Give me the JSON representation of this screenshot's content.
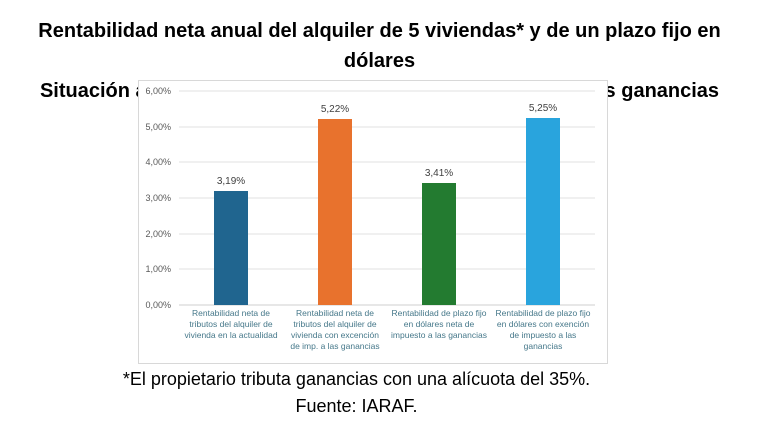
{
  "title": {
    "line1": "Rentabilidad neta anual del alquiler de 5 viviendas* y de un plazo fijo en dólares",
    "line2": "Situación actual y potencial con exención del impuesto a las ganancias"
  },
  "footer": {
    "note": "*El propietario tributa ganancias con una alícuota del 35%.",
    "source": "Fuente: IARAF."
  },
  "chart_data": {
    "type": "bar",
    "title": "",
    "xlabel": "",
    "ylabel": "",
    "categories": [
      "Rentabilidad neta de tributos del alquiler de vivienda en la actualidad",
      "Rentabilidad neta de tributos del alquiler de vivienda con excención de imp. a las ganancias",
      "Rentabilidad de plazo fijo en dólares neta de impuesto a las ganancias",
      "Rentabilidad de plazo fijo en dólares con exención de impuesto a las ganancias"
    ],
    "values": [
      3.19,
      5.22,
      3.41,
      5.25
    ],
    "value_labels": [
      "3,19%",
      "5,22%",
      "3,41%",
      "5,25%"
    ],
    "bar_colors": [
      "#20658F",
      "#E8722D",
      "#237B30",
      "#29A4DD"
    ],
    "ylim": [
      0,
      6
    ],
    "y_ticks": [
      "0,00%",
      "1,00%",
      "2,00%",
      "3,00%",
      "4,00%",
      "5,00%",
      "6,00%"
    ],
    "grid": true,
    "legend_position": "none",
    "colors": {
      "grid_line": "#e2e2e2",
      "panel_border": "#d8d8d8",
      "y_tick_text": "#595959",
      "value_label_text": "#404040",
      "category_text": "#46788A",
      "title_text": "#000000"
    }
  }
}
